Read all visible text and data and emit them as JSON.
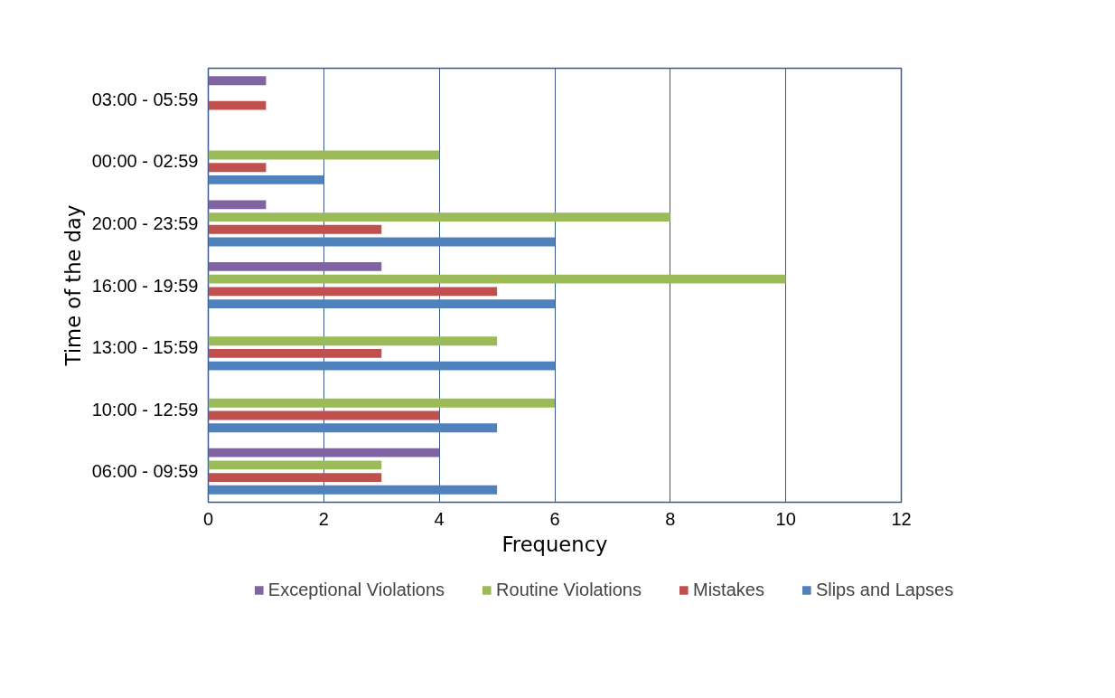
{
  "chart_data": {
    "type": "bar",
    "orientation": "horizontal",
    "xlabel": "Frequency",
    "ylabel": "Time of the day",
    "categories": [
      "03:00 - 05:59",
      "00:00 - 02:59",
      "20:00 - 23:59",
      "16:00 - 19:59",
      "13:00 - 15:59",
      "10:00 - 12:59",
      "06:00 - 09:59"
    ],
    "series": [
      {
        "name": "Exceptional Violations",
        "color": "#8064a2",
        "values": [
          1,
          null,
          1,
          3,
          null,
          null,
          4
        ]
      },
      {
        "name": "Routine Violations",
        "color": "#9bbb59",
        "values": [
          null,
          4,
          8,
          10,
          5,
          6,
          3
        ]
      },
      {
        "name": "Mistakes",
        "color": "#c0504d",
        "values": [
          1,
          1,
          3,
          5,
          3,
          4,
          3
        ]
      },
      {
        "name": "Slips and Lapses",
        "color": "#4f81bd",
        "values": [
          null,
          2,
          6,
          6,
          6,
          5,
          5
        ]
      }
    ],
    "xlim": [
      0,
      12
    ],
    "xticks": [
      0,
      2,
      4,
      6,
      8,
      10,
      12
    ],
    "grid": "x",
    "legend": "bottom"
  }
}
